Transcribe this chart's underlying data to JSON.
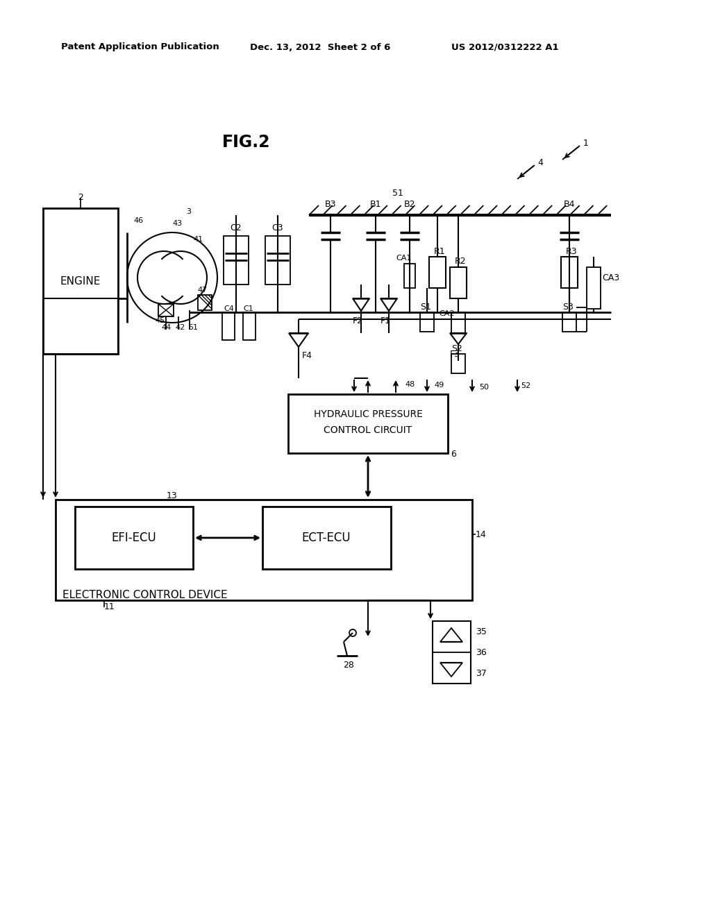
{
  "bg_color": "#ffffff",
  "header_left": "Patent Application Publication",
  "header_mid": "Dec. 13, 2012  Sheet 2 of 6",
  "header_right": "US 2012/0312222 A1",
  "fig_title": "FIG.2"
}
